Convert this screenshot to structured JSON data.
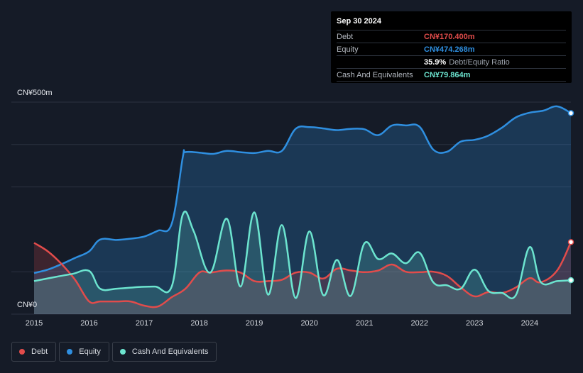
{
  "tooltip": {
    "date": "Sep 30 2024",
    "rows": [
      {
        "label": "Debt",
        "value": "CN¥170.400m",
        "color": "#e24c4b"
      },
      {
        "label": "Equity",
        "value": "CN¥474.268m",
        "color": "#2f8fe0"
      },
      {
        "label": "",
        "value": "35.9%",
        "extra": "Debt/Equity Ratio",
        "color": "#ffffff"
      },
      {
        "label": "Cash And Equivalents",
        "value": "CN¥79.864m",
        "color": "#6ce4cf"
      }
    ]
  },
  "legend": [
    {
      "label": "Debt",
      "color": "#e24c4b"
    },
    {
      "label": "Equity",
      "color": "#2f8fe0"
    },
    {
      "label": "Cash And Equivalents",
      "color": "#6ce4cf"
    }
  ],
  "chart_data": {
    "type": "area",
    "y_top_label": "CN¥500m",
    "y_bottom_label": "CN¥0",
    "ylim": [
      0,
      500
    ],
    "xlim": [
      2015.0,
      2024.75
    ],
    "x_ticks": [
      "2015",
      "2016",
      "2017",
      "2018",
      "2019",
      "2020",
      "2021",
      "2022",
      "2023",
      "2024"
    ],
    "series": [
      {
        "name": "Debt",
        "color": "#e24c4b",
        "x": [
          2015.0,
          2015.25,
          2015.5,
          2015.75,
          2016.0,
          2016.2,
          2016.5,
          2016.75,
          2017.0,
          2017.25,
          2017.5,
          2017.75,
          2018.0,
          2018.2,
          2018.5,
          2018.75,
          2019.0,
          2019.25,
          2019.5,
          2019.75,
          2020.0,
          2020.25,
          2020.5,
          2020.75,
          2021.0,
          2021.25,
          2021.5,
          2021.75,
          2022.0,
          2022.25,
          2022.5,
          2022.75,
          2023.0,
          2023.25,
          2023.5,
          2023.75,
          2024.0,
          2024.2,
          2024.5,
          2024.75
        ],
        "y": [
          168,
          148,
          118,
          80,
          30,
          30,
          30,
          30,
          20,
          18,
          40,
          60,
          98,
          98,
          103,
          98,
          78,
          78,
          81,
          98,
          98,
          84,
          107,
          103,
          99,
          103,
          117,
          100,
          99,
          100,
          90,
          63,
          42,
          52,
          50,
          63,
          85,
          75,
          103,
          170
        ]
      },
      {
        "name": "Equity",
        "color": "#2f8fe0",
        "x": [
          2015.0,
          2015.25,
          2015.5,
          2015.75,
          2016.0,
          2016.2,
          2016.5,
          2016.75,
          2017.0,
          2017.25,
          2017.5,
          2017.7,
          2017.75,
          2018.0,
          2018.25,
          2018.5,
          2018.75,
          2019.0,
          2019.25,
          2019.5,
          2019.75,
          2020.0,
          2020.25,
          2020.5,
          2020.75,
          2021.0,
          2021.25,
          2021.5,
          2021.75,
          2022.0,
          2022.25,
          2022.5,
          2022.75,
          2023.0,
          2023.25,
          2023.5,
          2023.75,
          2024.0,
          2024.25,
          2024.5,
          2024.75
        ],
        "y": [
          97,
          105,
          118,
          133,
          148,
          176,
          175,
          178,
          183,
          197,
          213,
          370,
          382,
          381,
          378,
          385,
          382,
          380,
          385,
          385,
          437,
          441,
          438,
          434,
          437,
          436,
          422,
          445,
          445,
          442,
          388,
          383,
          407,
          411,
          421,
          440,
          464,
          475,
          480,
          490,
          474
        ]
      },
      {
        "name": "Cash And Equivalents",
        "color": "#6ce4cf",
        "x": [
          2015.0,
          2015.4,
          2015.7,
          2016.0,
          2016.2,
          2016.5,
          2016.9,
          2017.2,
          2017.5,
          2017.7,
          2017.9,
          2018.2,
          2018.5,
          2018.75,
          2019.0,
          2019.25,
          2019.5,
          2019.75,
          2020.0,
          2020.25,
          2020.5,
          2020.75,
          2021.0,
          2021.25,
          2021.5,
          2021.75,
          2022.0,
          2022.25,
          2022.5,
          2022.75,
          2023.0,
          2023.25,
          2023.5,
          2023.75,
          2024.0,
          2024.2,
          2024.5,
          2024.75
        ],
        "y": [
          78,
          88,
          95,
          102,
          60,
          60,
          64,
          65,
          65,
          235,
          195,
          98,
          225,
          65,
          240,
          46,
          210,
          38,
          195,
          45,
          128,
          43,
          167,
          130,
          143,
          120,
          145,
          75,
          68,
          60,
          105,
          55,
          50,
          45,
          158,
          76,
          78,
          80
        ]
      }
    ]
  }
}
